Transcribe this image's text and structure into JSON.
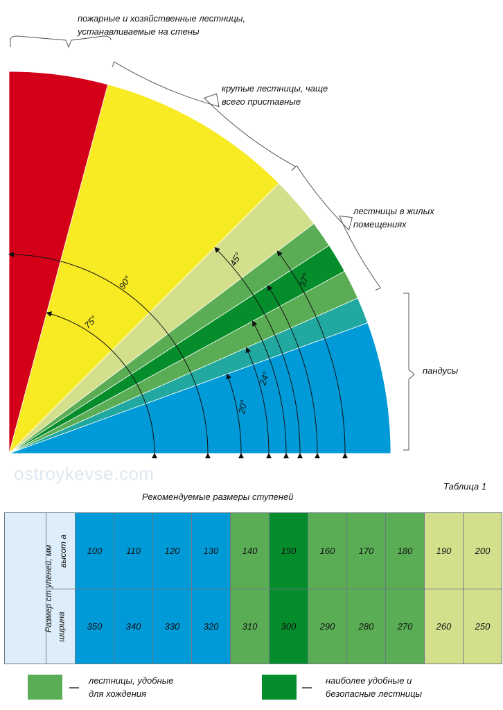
{
  "labels": {
    "fire_ladders": [
      "пожарные и хозяйственные лестницы,",
      "устанавливаемые на стены"
    ],
    "steep_stairs": [
      "крутые лестницы, чаще",
      "всего приставные"
    ],
    "residential": [
      "лестницы в жилых",
      "помещениях"
    ],
    "ramps": "пандусы"
  },
  "angles": {
    "a90": "90°",
    "a75": "75°",
    "a45": "45°",
    "a37": "37°",
    "a24": "24°",
    "a20": "20°"
  },
  "watermark": "ostroykevse.com",
  "table": {
    "caption": "Таблица 1",
    "title": "Рекомендуемые размеры ступеней",
    "row_header": "Размер ст упеней, мм",
    "height_label": "высот а",
    "width_label": "ширина",
    "heights": [
      "100",
      "110",
      "120",
      "130",
      "140",
      "150",
      "160",
      "170",
      "180",
      "190",
      "200"
    ],
    "widths": [
      "350",
      "340",
      "330",
      "320",
      "310",
      "300",
      "290",
      "280",
      "270",
      "260",
      "250"
    ],
    "cell_colors": [
      "#009ad8",
      "#009ad8",
      "#009ad8",
      "#009ad8",
      "#5aad55",
      "#058c2b",
      "#5aad55",
      "#5aad55",
      "#5aad55",
      "#d4df8c",
      "#d4df8c"
    ]
  },
  "legend": {
    "comfortable": [
      "лестницы, удобные",
      "для хождения"
    ],
    "safest": [
      "наиболее удобные и",
      "безопасные лестницы"
    ]
  },
  "colors": {
    "red": "#d40017",
    "yellow": "#f8ea23",
    "light_green": "#d4df8c",
    "mid_green": "#5aad55",
    "dark_green": "#058c2b",
    "teal": "#21a8a0",
    "blue": "#009ad8",
    "header_blue": "#ddeefa"
  }
}
